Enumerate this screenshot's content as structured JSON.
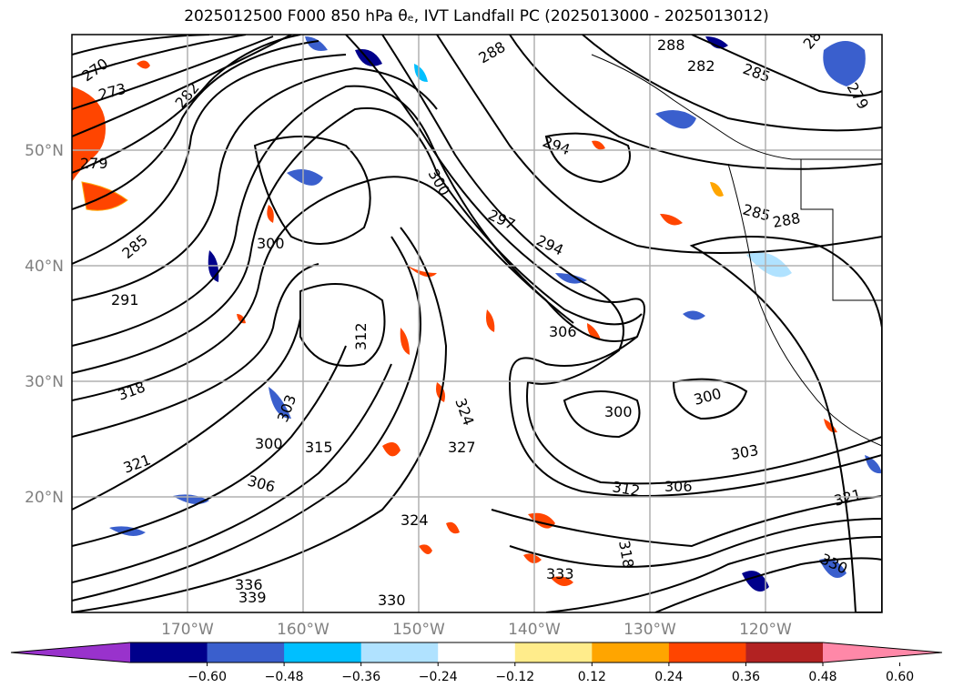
{
  "title": "2025012500 F000 850 hPa θₑ, IVT Landfall PC (2025013000 - 2025013012)",
  "map": {
    "lat_labels": [
      "50°N",
      "40°N",
      "30°N",
      "20°N"
    ],
    "lon_labels": [
      "170°W",
      "160°W",
      "150°W",
      "140°W",
      "130°W",
      "120°W"
    ],
    "grid": true,
    "contour_labels": [
      "270",
      "273",
      "279",
      "282",
      "285",
      "288",
      "291",
      "294",
      "297",
      "300",
      "303",
      "306",
      "312",
      "315",
      "318",
      "321",
      "324",
      "327",
      "330",
      "333",
      "336",
      "339"
    ]
  },
  "colorbar": {
    "ticks": [
      "−0.60",
      "−0.48",
      "−0.36",
      "−0.24",
      "−0.12",
      "0.12",
      "0.24",
      "0.36",
      "0.48",
      "0.60"
    ],
    "colors": [
      "#9932cc",
      "#00008b",
      "#3a5fcd",
      "#00bfff",
      "#b0e2ff",
      "#ffffff",
      "#ffec8b",
      "#ffa500",
      "#ff4500",
      "#b22222",
      "#ff88a8"
    ],
    "extend": "both"
  }
}
